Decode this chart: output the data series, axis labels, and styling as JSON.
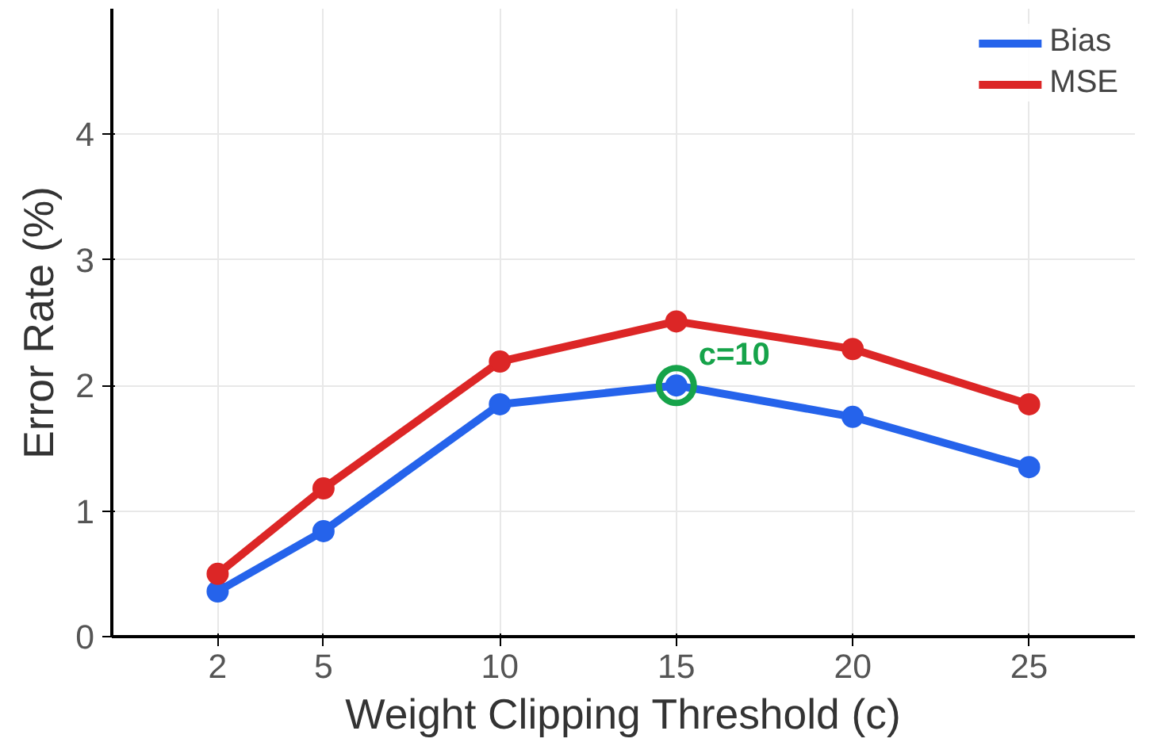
{
  "chart_data": {
    "type": "line",
    "xlabel": "Weight Clipping Threshold (c)",
    "ylabel": "Error Rate (%)",
    "x": [
      2,
      5,
      10,
      15,
      20,
      25
    ],
    "series": [
      {
        "name": "Bias",
        "color": "#2563eb",
        "values": [
          0.36,
          0.84,
          1.85,
          2.0,
          1.75,
          1.35
        ]
      },
      {
        "name": "MSE",
        "color": "#dc2626",
        "values": [
          0.5,
          1.18,
          2.19,
          2.51,
          2.29,
          1.85
        ]
      }
    ],
    "xlim": [
      -1,
      28
    ],
    "xticks": [
      2,
      5,
      10,
      15,
      20,
      25
    ],
    "ylim": [
      0,
      5
    ],
    "yticks": [
      0,
      1,
      2,
      3,
      4
    ],
    "annotations": [
      {
        "text": "c=10",
        "x": 15,
        "y": 2.0
      }
    ],
    "grid": true,
    "legend": "top right",
    "marker": "circle",
    "line_style": "solid"
  }
}
